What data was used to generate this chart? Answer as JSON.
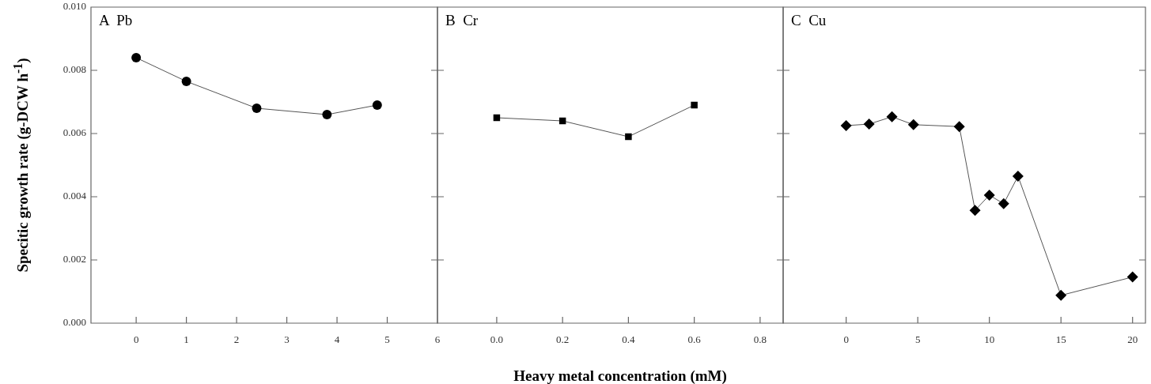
{
  "chart_data": [
    {
      "type": "line",
      "title": "A  Pb",
      "ylabel": "Specitic growth rate (g-DCW h$^{-1}$)",
      "marker": "circle",
      "legend": false,
      "grid": false,
      "xlim": [
        -0.9,
        6
      ],
      "xticks": [
        0,
        1,
        2,
        3,
        4,
        5,
        6
      ],
      "ylim": [
        0,
        0.01
      ],
      "yticks": [
        {
          "value": 0,
          "label": "0.000"
        },
        0.002,
        0.004,
        0.006,
        0.008,
        {
          "value": 0.01,
          "label": "0.010"
        }
      ],
      "series": [
        {
          "color": "#000000",
          "x": [
            0,
            1,
            2.4,
            3.8,
            4.8
          ],
          "values": [
            0.0084,
            0.00765,
            0.0068,
            0.0066,
            0.0069
          ]
        }
      ]
    },
    {
      "type": "line",
      "title": "B  Cr",
      "xlabel": "Heavy metal concentration (mM)",
      "marker": "square",
      "legend": false,
      "grid": false,
      "tick_labels": "x",
      "xlim": [
        -0.18,
        0.87
      ],
      "xticks": [
        {
          "value": 0,
          "label": "0.0"
        },
        0.2,
        0.4,
        0.6,
        0.8
      ],
      "ylim": [
        0,
        0.01
      ],
      "yticks": [
        0,
        0.002,
        0.004,
        0.006,
        0.008,
        0.01
      ],
      "series": [
        {
          "color": "#000000",
          "x": [
            0,
            0.2,
            0.4,
            0.6
          ],
          "values": [
            0.0065,
            0.0064,
            0.0059,
            0.0069
          ]
        }
      ]
    },
    {
      "type": "line",
      "title": "C  Cu",
      "marker": "diamond",
      "legend": false,
      "grid": false,
      "tick_labels": "x",
      "xlim": [
        -4.4,
        20.9
      ],
      "xticks": [
        0,
        5,
        10,
        15,
        20
      ],
      "ylim": [
        0,
        0.01
      ],
      "yticks": [
        0,
        0.002,
        0.004,
        0.006,
        0.008,
        0.01
      ],
      "series": [
        {
          "color": "#000000",
          "x": [
            0,
            1.6,
            3.2,
            4.7,
            7.9,
            9,
            10,
            11,
            12,
            15,
            20
          ],
          "values": [
            0.00625,
            0.0063,
            0.00653,
            0.00628,
            0.00622,
            0.00357,
            0.00405,
            0.00378,
            0.00465,
            0.00088,
            0.00146
          ]
        }
      ]
    }
  ]
}
